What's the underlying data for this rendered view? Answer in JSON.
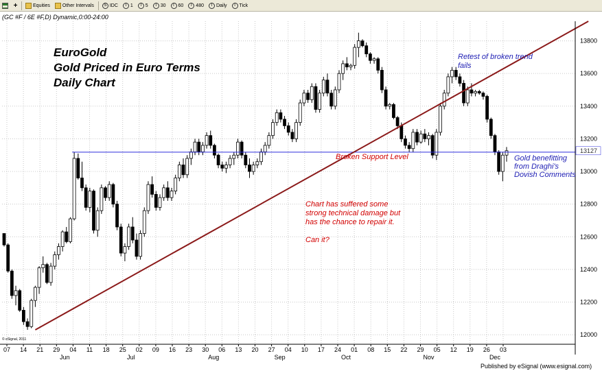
{
  "toolbar": {
    "items": [
      {
        "icon": "grid-icon",
        "label": ""
      },
      {
        "icon": "folder-icon",
        "label": "Equities"
      },
      {
        "icon": "folder-icon",
        "label": "Other Intervals"
      },
      {
        "icon": "circle-icon",
        "glyph": "S",
        "label": "IDC"
      },
      {
        "icon": "circle-icon",
        "glyph": "I",
        "label": "1"
      },
      {
        "icon": "circle-icon",
        "glyph": "I",
        "label": "5"
      },
      {
        "icon": "circle-icon",
        "glyph": "I",
        "label": "30"
      },
      {
        "icon": "circle-icon",
        "glyph": "I",
        "label": "60"
      },
      {
        "icon": "circle-icon",
        "glyph": "I",
        "label": "480"
      },
      {
        "icon": "circle-icon",
        "glyph": "I",
        "label": "Daily"
      },
      {
        "icon": "circle-icon",
        "glyph": "I",
        "label": "Tick"
      }
    ]
  },
  "symbol_line": "(GC #F / 6E #F,D) Dynamic,0:00-24:00",
  "annotations": {
    "title": "EuroGold\nGold Priced in Euro Terms\nDaily Chart",
    "retest": "Retest of broken trend\nfails",
    "support": "Broken Support Level",
    "gold_note": "Gold benefitting\nfrom Draghi's\nDovish Comments",
    "damage": "Chart has suffered some\nstrong technical damage but\nhas the chance to repair it.\n\nCan it?"
  },
  "copyright": "© eSignal, 2011",
  "footer": "Published by eSignal (www.esignal.com)",
  "colors": {
    "up": "#ffffff",
    "down": "#000000",
    "trendline": "#8b1a1a",
    "support": "#2d2ddc",
    "grid": "#c8c8c8"
  },
  "chart_data": {
    "type": "candlestick",
    "title": "EuroGold",
    "ylim": [
      11950,
      13920
    ],
    "yticks": [
      12000,
      12200,
      12400,
      12600,
      12800,
      13000,
      13200,
      13400,
      13600,
      13800
    ],
    "last_price_label": "13127",
    "x_tick_labels": [
      "07",
      "14",
      "21",
      "29",
      "04",
      "11",
      "18",
      "25",
      "02",
      "09",
      "16",
      "23",
      "30",
      "06",
      "13",
      "20",
      "27",
      "04",
      "10",
      "17",
      "24",
      "01",
      "08",
      "15",
      "22",
      "29",
      "05",
      "12",
      "19",
      "26",
      "03"
    ],
    "month_labels": [
      {
        "label": "Jun",
        "after_tick": 3
      },
      {
        "label": "Jul",
        "after_tick": 7
      },
      {
        "label": "Aug",
        "after_tick": 12
      },
      {
        "label": "Sep",
        "after_tick": 16
      },
      {
        "label": "Oct",
        "after_tick": 20
      },
      {
        "label": "Nov",
        "after_tick": 25
      },
      {
        "label": "Dec",
        "after_tick": 29
      }
    ],
    "support_level": 13118,
    "trendline": {
      "start": {
        "bar": 8,
        "price": 12030
      },
      "end": {
        "bar": 150,
        "price": 13920
      }
    },
    "candles": [
      [
        12620,
        12620,
        12540,
        12550
      ],
      [
        12550,
        12560,
        12380,
        12390
      ],
      [
        12390,
        12400,
        12220,
        12240
      ],
      [
        12240,
        12300,
        12180,
        12270
      ],
      [
        12270,
        12280,
        12140,
        12150
      ],
      [
        12150,
        12170,
        12060,
        12080
      ],
      [
        12080,
        12100,
        12030,
        12050
      ],
      [
        12050,
        12220,
        12040,
        12210
      ],
      [
        12210,
        12300,
        12170,
        12290
      ],
      [
        12290,
        12420,
        12250,
        12410
      ],
      [
        12410,
        12480,
        12380,
        12430
      ],
      [
        12430,
        12440,
        12310,
        12320
      ],
      [
        12320,
        12440,
        12300,
        12420
      ],
      [
        12420,
        12510,
        12400,
        12490
      ],
      [
        12490,
        12560,
        12460,
        12540
      ],
      [
        12540,
        12640,
        12510,
        12630
      ],
      [
        12630,
        12660,
        12560,
        12570
      ],
      [
        12570,
        12720,
        12560,
        12710
      ],
      [
        12710,
        13120,
        12700,
        13080
      ],
      [
        13080,
        13110,
        12950,
        12960
      ],
      [
        12960,
        13060,
        12880,
        12900
      ],
      [
        12900,
        12920,
        12760,
        12780
      ],
      [
        12780,
        12900,
        12750,
        12880
      ],
      [
        12880,
        12890,
        12620,
        12640
      ],
      [
        12640,
        12780,
        12600,
        12760
      ],
      [
        12760,
        12920,
        12740,
        12900
      ],
      [
        12900,
        12910,
        12820,
        12840
      ],
      [
        12840,
        12940,
        12820,
        12920
      ],
      [
        12920,
        12930,
        12780,
        12800
      ],
      [
        12800,
        12820,
        12640,
        12660
      ],
      [
        12660,
        12680,
        12480,
        12500
      ],
      [
        12500,
        12560,
        12450,
        12540
      ],
      [
        12540,
        12680,
        12520,
        12660
      ],
      [
        12660,
        12720,
        12560,
        12580
      ],
      [
        12580,
        12620,
        12460,
        12480
      ],
      [
        12480,
        12640,
        12460,
        12620
      ],
      [
        12620,
        12780,
        12600,
        12760
      ],
      [
        12760,
        12940,
        12740,
        12920
      ],
      [
        12920,
        12970,
        12840,
        12860
      ],
      [
        12860,
        12880,
        12760,
        12780
      ],
      [
        12780,
        12860,
        12760,
        12840
      ],
      [
        12840,
        12920,
        12820,
        12900
      ],
      [
        12900,
        12940,
        12820,
        12840
      ],
      [
        12840,
        12900,
        12820,
        12880
      ],
      [
        12880,
        12980,
        12860,
        12960
      ],
      [
        12960,
        13060,
        12940,
        13040
      ],
      [
        13040,
        13080,
        12960,
        12980
      ],
      [
        12980,
        13100,
        12960,
        13080
      ],
      [
        13080,
        13140,
        13040,
        13120
      ],
      [
        13120,
        13200,
        13100,
        13180
      ],
      [
        13180,
        13200,
        13100,
        13120
      ],
      [
        13120,
        13180,
        13100,
        13160
      ],
      [
        13160,
        13240,
        13140,
        13220
      ],
      [
        13220,
        13250,
        13140,
        13160
      ],
      [
        13160,
        13170,
        13080,
        13100
      ],
      [
        13100,
        13110,
        13020,
        13040
      ],
      [
        13040,
        13060,
        13000,
        13020
      ],
      [
        13020,
        13060,
        12990,
        13040
      ],
      [
        13040,
        13100,
        13020,
        13080
      ],
      [
        13080,
        13120,
        13040,
        13100
      ],
      [
        13100,
        13200,
        13080,
        13180
      ],
      [
        13180,
        13190,
        13080,
        13100
      ],
      [
        13100,
        13120,
        13020,
        13040
      ],
      [
        13040,
        13080,
        12960,
        13000
      ],
      [
        13000,
        13060,
        12980,
        13040
      ],
      [
        13040,
        13080,
        13020,
        13060
      ],
      [
        13060,
        13140,
        13040,
        13120
      ],
      [
        13120,
        13180,
        13100,
        13160
      ],
      [
        13160,
        13240,
        13140,
        13220
      ],
      [
        13220,
        13320,
        13200,
        13300
      ],
      [
        13300,
        13380,
        13280,
        13360
      ],
      [
        13360,
        13380,
        13300,
        13320
      ],
      [
        13320,
        13340,
        13260,
        13280
      ],
      [
        13280,
        13300,
        13220,
        13240
      ],
      [
        13240,
        13260,
        13180,
        13200
      ],
      [
        13200,
        13320,
        13180,
        13300
      ],
      [
        13300,
        13440,
        13280,
        13420
      ],
      [
        13420,
        13500,
        13400,
        13480
      ],
      [
        13480,
        13500,
        13420,
        13440
      ],
      [
        13440,
        13540,
        13420,
        13520
      ],
      [
        13520,
        13540,
        13360,
        13380
      ],
      [
        13380,
        13500,
        13360,
        13480
      ],
      [
        13480,
        13580,
        13460,
        13560
      ],
      [
        13560,
        13600,
        13460,
        13480
      ],
      [
        13480,
        13500,
        13380,
        13400
      ],
      [
        13400,
        13520,
        13380,
        13500
      ],
      [
        13500,
        13620,
        13480,
        13600
      ],
      [
        13600,
        13680,
        13560,
        13660
      ],
      [
        13660,
        13700,
        13620,
        13640
      ],
      [
        13640,
        13660,
        13620,
        13650
      ],
      [
        13650,
        13780,
        13630,
        13760
      ],
      [
        13760,
        13850,
        13700,
        13800
      ],
      [
        13800,
        13810,
        13760,
        13770
      ],
      [
        13770,
        13790,
        13700,
        13720
      ],
      [
        13720,
        13730,
        13660,
        13680
      ],
      [
        13680,
        13700,
        13660,
        13690
      ],
      [
        13690,
        13700,
        13600,
        13620
      ],
      [
        13620,
        13640,
        13480,
        13500
      ],
      [
        13500,
        13520,
        13380,
        13400
      ],
      [
        13400,
        13420,
        13380,
        13410
      ],
      [
        13410,
        13420,
        13320,
        13330
      ],
      [
        13330,
        13340,
        13260,
        13280
      ],
      [
        13280,
        13300,
        13180,
        13200
      ],
      [
        13200,
        13220,
        13140,
        13160
      ],
      [
        13160,
        13180,
        13120,
        13140
      ],
      [
        13140,
        13260,
        13120,
        13240
      ],
      [
        13240,
        13260,
        13160,
        13180
      ],
      [
        13180,
        13250,
        13170,
        13230
      ],
      [
        13230,
        13260,
        13180,
        13200
      ],
      [
        13200,
        13240,
        13160,
        13220
      ],
      [
        13220,
        13230,
        13080,
        13100
      ],
      [
        13100,
        13260,
        13070,
        13240
      ],
      [
        13240,
        13420,
        13220,
        13400
      ],
      [
        13400,
        13500,
        13380,
        13480
      ],
      [
        13480,
        13600,
        13460,
        13580
      ],
      [
        13580,
        13640,
        13540,
        13620
      ],
      [
        13620,
        13640,
        13560,
        13580
      ],
      [
        13580,
        13600,
        13520,
        13540
      ],
      [
        13540,
        13560,
        13400,
        13420
      ],
      [
        13420,
        13520,
        13400,
        13500
      ],
      [
        13500,
        13540,
        13460,
        13480
      ],
      [
        13480,
        13500,
        13460,
        13490
      ],
      [
        13490,
        13500,
        13470,
        13480
      ],
      [
        13480,
        13490,
        13440,
        13460
      ],
      [
        13460,
        13470,
        13300,
        13320
      ],
      [
        13320,
        13330,
        13200,
        13220
      ],
      [
        13220,
        13230,
        13100,
        13120
      ],
      [
        13120,
        13130,
        12980,
        13000
      ],
      [
        13000,
        13120,
        12940,
        13100
      ],
      [
        13100,
        13150,
        13060,
        13127
      ]
    ]
  }
}
